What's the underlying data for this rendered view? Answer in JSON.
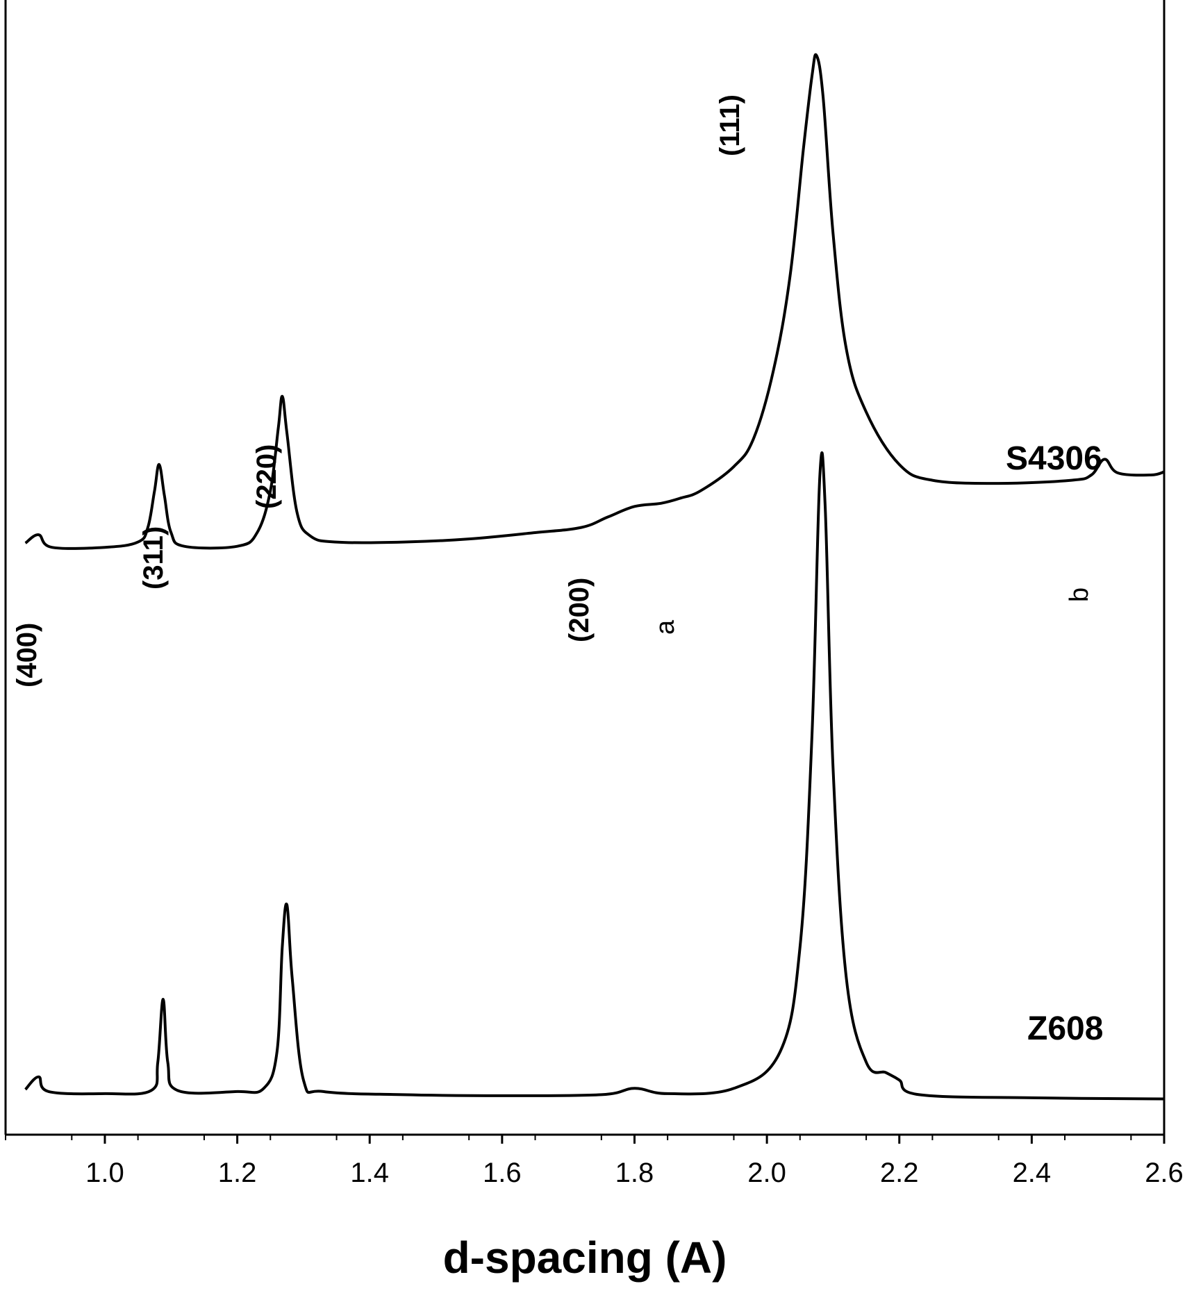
{
  "chart_data": {
    "type": "line",
    "xlabel": "d-spacing (A)",
    "xlim": [
      0.85,
      2.6
    ],
    "xticks": [
      1.0,
      1.2,
      1.4,
      1.6,
      1.8,
      2.0,
      2.2,
      2.4,
      2.6
    ],
    "ylim": [
      0,
      100
    ],
    "ylabel": "",
    "grid": false,
    "legend": "none",
    "series": [
      {
        "name": "S4306",
        "points": [
          [
            0.88,
            53.5
          ],
          [
            0.9,
            54.3
          ],
          [
            0.92,
            53.1
          ],
          [
            1.0,
            53.1
          ],
          [
            1.05,
            53.6
          ],
          [
            1.065,
            55.0
          ],
          [
            1.075,
            58.5
          ],
          [
            1.082,
            61.0
          ],
          [
            1.09,
            58.0
          ],
          [
            1.1,
            54.5
          ],
          [
            1.12,
            53.2
          ],
          [
            1.2,
            53.2
          ],
          [
            1.23,
            54.5
          ],
          [
            1.25,
            58.5
          ],
          [
            1.262,
            64.5
          ],
          [
            1.268,
            67.5
          ],
          [
            1.275,
            64.0
          ],
          [
            1.29,
            56.5
          ],
          [
            1.31,
            54.2
          ],
          [
            1.35,
            53.6
          ],
          [
            1.45,
            53.6
          ],
          [
            1.55,
            53.9
          ],
          [
            1.65,
            54.5
          ],
          [
            1.72,
            55.0
          ],
          [
            1.76,
            56.0
          ],
          [
            1.8,
            57.0
          ],
          [
            1.84,
            57.3
          ],
          [
            1.87,
            57.8
          ],
          [
            1.9,
            58.5
          ],
          [
            1.95,
            60.8
          ],
          [
            1.98,
            63.5
          ],
          [
            2.01,
            70.0
          ],
          [
            2.035,
            79.0
          ],
          [
            2.055,
            91.0
          ],
          [
            2.068,
            98.0
          ],
          [
            2.075,
            100.0
          ],
          [
            2.085,
            96.0
          ],
          [
            2.1,
            83.0
          ],
          [
            2.12,
            72.0
          ],
          [
            2.15,
            66.0
          ],
          [
            2.2,
            61.0
          ],
          [
            2.25,
            59.5
          ],
          [
            2.35,
            59.2
          ],
          [
            2.46,
            59.5
          ],
          [
            2.49,
            60.0
          ],
          [
            2.51,
            61.5
          ],
          [
            2.53,
            60.2
          ],
          [
            2.58,
            60.0
          ],
          [
            2.6,
            60.3
          ]
        ]
      },
      {
        "name": "Z608",
        "points": [
          [
            0.88,
            1.4
          ],
          [
            0.9,
            2.6
          ],
          [
            0.915,
            1.2
          ],
          [
            1.0,
            1.0
          ],
          [
            1.07,
            1.3
          ],
          [
            1.08,
            4.0
          ],
          [
            1.088,
            10.0
          ],
          [
            1.095,
            4.0
          ],
          [
            1.11,
            1.3
          ],
          [
            1.2,
            1.2
          ],
          [
            1.24,
            1.5
          ],
          [
            1.26,
            5.0
          ],
          [
            1.268,
            15.0
          ],
          [
            1.275,
            19.0
          ],
          [
            1.283,
            12.0
          ],
          [
            1.3,
            2.3
          ],
          [
            1.33,
            1.2
          ],
          [
            1.45,
            0.9
          ],
          [
            1.6,
            0.8
          ],
          [
            1.75,
            0.9
          ],
          [
            1.8,
            1.5
          ],
          [
            1.85,
            1.0
          ],
          [
            1.95,
            1.5
          ],
          [
            2.02,
            5.0
          ],
          [
            2.05,
            15.0
          ],
          [
            2.068,
            35.0
          ],
          [
            2.08,
            60.0
          ],
          [
            2.088,
            57.0
          ],
          [
            2.1,
            32.0
          ],
          [
            2.12,
            12.0
          ],
          [
            2.15,
            4.0
          ],
          [
            2.18,
            3.0
          ],
          [
            2.2,
            2.3
          ],
          [
            2.23,
            0.9
          ],
          [
            2.4,
            0.6
          ],
          [
            2.6,
            0.5
          ]
        ]
      }
    ],
    "series_labels": [
      "S4306",
      "Z608"
    ],
    "peak_annotations": [
      "(111)",
      "(220)",
      "(311)",
      "(200)",
      "(400)"
    ],
    "marker_annotations": [
      "a",
      "b"
    ]
  }
}
